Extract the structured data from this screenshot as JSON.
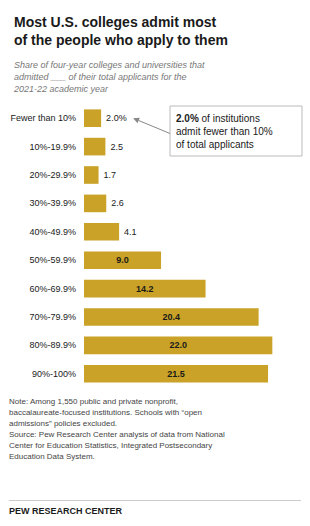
{
  "chart_data": {
    "type": "bar",
    "orientation": "horizontal",
    "title": "Most U.S. colleges admit most\nof the people who apply to them",
    "subtitle": "Share of four-year colleges and universities that\nadmitted ___ of their total applicants for the\n2021-22 academic year",
    "categories": [
      "Fewer than 10%",
      "10%-19.9%",
      "20%-29.9%",
      "30%-39.9%",
      "40%-49.9%",
      "50%-59.9%",
      "60%-69.9%",
      "70%-79.9%",
      "80%-89.9%",
      "90%-100%"
    ],
    "values": [
      2.0,
      2.5,
      1.7,
      2.6,
      4.1,
      9.0,
      14.2,
      20.4,
      22.0,
      21.5
    ],
    "value_labels": [
      "2.0%",
      "2.5",
      "1.7",
      "2.6",
      "4.1",
      "9.0",
      "14.2",
      "20.4",
      "22.0",
      "21.5"
    ],
    "data_labels": true,
    "color": "#C9A227",
    "xlim": [
      0,
      25
    ],
    "grid": false,
    "tick_labels": "y",
    "annotation_bold": "2.0%",
    "annotation": " of institutions\nadmit fewer than 10%\nof total applicants",
    "note": "Note: Among 1,550 public and private nonprofit,\nbaccalaureate-focused institutions. Schools with “open\nadmissions” policies excluded.\nSource: Pew Research Center analysis of data from National\nCenter for Education Statistics, Integrated Postsecondary\nEducation Data System.",
    "footer": "PEW RESEARCH CENTER"
  }
}
